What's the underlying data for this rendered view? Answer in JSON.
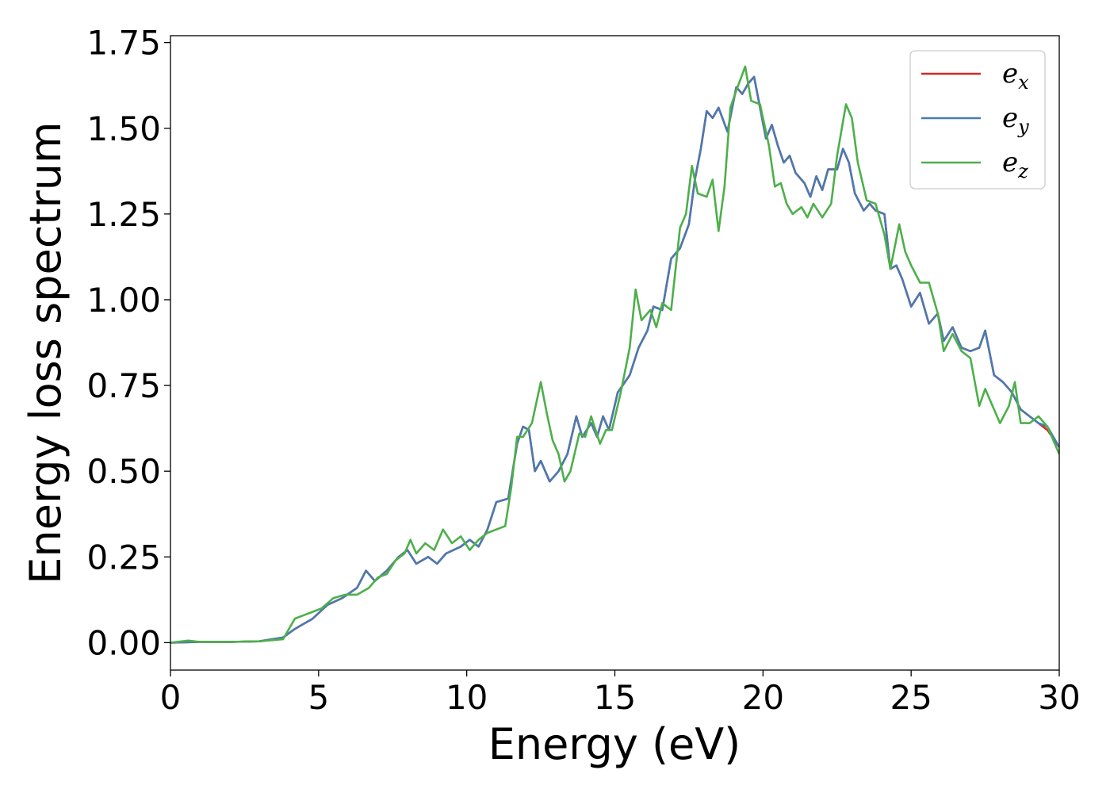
{
  "chart_data": {
    "type": "line",
    "title": "",
    "xlabel": "Energy (eV)",
    "ylabel": "Energy loss spectrum",
    "xlim": [
      0,
      30
    ],
    "ylim": [
      -0.08,
      1.77
    ],
    "xticks": [
      "0",
      "5",
      "10",
      "15",
      "20",
      "25",
      "30"
    ],
    "yticks": [
      "0.00",
      "0.25",
      "0.50",
      "0.75",
      "1.00",
      "1.25",
      "1.50",
      "1.75"
    ],
    "grid": false,
    "legend_position": "top-right",
    "series": [
      {
        "name": "e_x",
        "label_base": "e",
        "label_sub": "x",
        "color": "#d62728",
        "points": [
          [
            0,
            0
          ],
          [
            1,
            0.002
          ],
          [
            2,
            0.002
          ],
          [
            3,
            0.004
          ],
          [
            3.8,
            0.015
          ],
          [
            4.2,
            0.04
          ],
          [
            4.8,
            0.07
          ],
          [
            5.3,
            0.11
          ],
          [
            5.8,
            0.13
          ],
          [
            6.3,
            0.16
          ],
          [
            6.6,
            0.21
          ],
          [
            6.9,
            0.18
          ],
          [
            7.3,
            0.21
          ],
          [
            7.7,
            0.25
          ],
          [
            8.0,
            0.27
          ],
          [
            8.3,
            0.23
          ],
          [
            8.7,
            0.25
          ],
          [
            9.0,
            0.23
          ],
          [
            9.3,
            0.26
          ],
          [
            9.8,
            0.28
          ],
          [
            10.1,
            0.3
          ],
          [
            10.4,
            0.28
          ],
          [
            10.7,
            0.33
          ],
          [
            11.0,
            0.41
          ],
          [
            11.4,
            0.42
          ],
          [
            11.7,
            0.58
          ],
          [
            11.9,
            0.63
          ],
          [
            12.1,
            0.62
          ],
          [
            12.3,
            0.5
          ],
          [
            12.5,
            0.53
          ],
          [
            12.8,
            0.47
          ],
          [
            13.1,
            0.5
          ],
          [
            13.4,
            0.55
          ],
          [
            13.7,
            0.66
          ],
          [
            13.9,
            0.6
          ],
          [
            14.2,
            0.64
          ],
          [
            14.4,
            0.6
          ],
          [
            14.6,
            0.66
          ],
          [
            14.8,
            0.62
          ],
          [
            15.1,
            0.73
          ],
          [
            15.5,
            0.78
          ],
          [
            15.8,
            0.86
          ],
          [
            16.1,
            0.91
          ],
          [
            16.3,
            0.98
          ],
          [
            16.6,
            0.97
          ],
          [
            16.9,
            1.12
          ],
          [
            17.2,
            1.15
          ],
          [
            17.5,
            1.22
          ],
          [
            17.7,
            1.35
          ],
          [
            17.9,
            1.44
          ],
          [
            18.1,
            1.55
          ],
          [
            18.3,
            1.53
          ],
          [
            18.5,
            1.56
          ],
          [
            18.8,
            1.49
          ],
          [
            19.1,
            1.62
          ],
          [
            19.3,
            1.6
          ],
          [
            19.5,
            1.63
          ],
          [
            19.7,
            1.65
          ],
          [
            19.9,
            1.56
          ],
          [
            20.1,
            1.47
          ],
          [
            20.3,
            1.51
          ],
          [
            20.5,
            1.45
          ],
          [
            20.7,
            1.4
          ],
          [
            20.9,
            1.42
          ],
          [
            21.1,
            1.37
          ],
          [
            21.4,
            1.34
          ],
          [
            21.6,
            1.3
          ],
          [
            21.8,
            1.36
          ],
          [
            22.0,
            1.32
          ],
          [
            22.2,
            1.38
          ],
          [
            22.5,
            1.38
          ],
          [
            22.7,
            1.44
          ],
          [
            22.9,
            1.4
          ],
          [
            23.1,
            1.31
          ],
          [
            23.4,
            1.26
          ],
          [
            23.6,
            1.28
          ],
          [
            23.8,
            1.26
          ],
          [
            24.1,
            1.25
          ],
          [
            24.3,
            1.09
          ],
          [
            24.5,
            1.1
          ],
          [
            24.7,
            1.06
          ],
          [
            25.0,
            0.98
          ],
          [
            25.3,
            1.02
          ],
          [
            25.6,
            0.93
          ],
          [
            25.9,
            0.96
          ],
          [
            26.1,
            0.88
          ],
          [
            26.4,
            0.92
          ],
          [
            26.7,
            0.86
          ],
          [
            27.0,
            0.85
          ],
          [
            27.3,
            0.86
          ],
          [
            27.5,
            0.91
          ],
          [
            27.8,
            0.78
          ],
          [
            28.1,
            0.76
          ],
          [
            28.4,
            0.73
          ],
          [
            28.7,
            0.68
          ],
          [
            29.0,
            0.66
          ],
          [
            29.3,
            0.64
          ],
          [
            29.6,
            0.62
          ],
          [
            30,
            0.57
          ]
        ]
      },
      {
        "name": "e_y",
        "label_base": "e",
        "label_sub": "y",
        "color": "#4a7ab0",
        "points": [
          [
            0,
            0
          ],
          [
            1,
            0.002
          ],
          [
            2,
            0.002
          ],
          [
            3,
            0.004
          ],
          [
            3.8,
            0.015
          ],
          [
            4.2,
            0.04
          ],
          [
            4.8,
            0.07
          ],
          [
            5.3,
            0.11
          ],
          [
            5.8,
            0.13
          ],
          [
            6.3,
            0.16
          ],
          [
            6.6,
            0.21
          ],
          [
            6.9,
            0.18
          ],
          [
            7.3,
            0.21
          ],
          [
            7.7,
            0.25
          ],
          [
            8.0,
            0.27
          ],
          [
            8.3,
            0.23
          ],
          [
            8.7,
            0.25
          ],
          [
            9.0,
            0.23
          ],
          [
            9.3,
            0.26
          ],
          [
            9.8,
            0.28
          ],
          [
            10.1,
            0.3
          ],
          [
            10.4,
            0.28
          ],
          [
            10.7,
            0.33
          ],
          [
            11.0,
            0.41
          ],
          [
            11.4,
            0.42
          ],
          [
            11.7,
            0.58
          ],
          [
            11.9,
            0.63
          ],
          [
            12.1,
            0.62
          ],
          [
            12.3,
            0.5
          ],
          [
            12.5,
            0.53
          ],
          [
            12.8,
            0.47
          ],
          [
            13.1,
            0.5
          ],
          [
            13.4,
            0.55
          ],
          [
            13.7,
            0.66
          ],
          [
            13.9,
            0.6
          ],
          [
            14.2,
            0.64
          ],
          [
            14.4,
            0.6
          ],
          [
            14.6,
            0.66
          ],
          [
            14.8,
            0.62
          ],
          [
            15.1,
            0.73
          ],
          [
            15.5,
            0.78
          ],
          [
            15.8,
            0.86
          ],
          [
            16.1,
            0.91
          ],
          [
            16.3,
            0.98
          ],
          [
            16.6,
            0.97
          ],
          [
            16.9,
            1.12
          ],
          [
            17.2,
            1.15
          ],
          [
            17.5,
            1.22
          ],
          [
            17.7,
            1.35
          ],
          [
            17.9,
            1.44
          ],
          [
            18.1,
            1.55
          ],
          [
            18.3,
            1.53
          ],
          [
            18.5,
            1.56
          ],
          [
            18.8,
            1.49
          ],
          [
            19.1,
            1.62
          ],
          [
            19.3,
            1.6
          ],
          [
            19.5,
            1.63
          ],
          [
            19.7,
            1.65
          ],
          [
            19.9,
            1.56
          ],
          [
            20.1,
            1.47
          ],
          [
            20.3,
            1.51
          ],
          [
            20.5,
            1.45
          ],
          [
            20.7,
            1.4
          ],
          [
            20.9,
            1.42
          ],
          [
            21.1,
            1.37
          ],
          [
            21.4,
            1.34
          ],
          [
            21.6,
            1.3
          ],
          [
            21.8,
            1.36
          ],
          [
            22.0,
            1.32
          ],
          [
            22.2,
            1.38
          ],
          [
            22.5,
            1.38
          ],
          [
            22.7,
            1.44
          ],
          [
            22.9,
            1.4
          ],
          [
            23.1,
            1.31
          ],
          [
            23.4,
            1.26
          ],
          [
            23.6,
            1.28
          ],
          [
            23.8,
            1.26
          ],
          [
            24.1,
            1.25
          ],
          [
            24.3,
            1.09
          ],
          [
            24.5,
            1.1
          ],
          [
            24.7,
            1.06
          ],
          [
            25.0,
            0.98
          ],
          [
            25.3,
            1.02
          ],
          [
            25.6,
            0.93
          ],
          [
            25.9,
            0.96
          ],
          [
            26.1,
            0.88
          ],
          [
            26.4,
            0.92
          ],
          [
            26.7,
            0.86
          ],
          [
            27.0,
            0.85
          ],
          [
            27.3,
            0.86
          ],
          [
            27.5,
            0.91
          ],
          [
            27.8,
            0.78
          ],
          [
            28.1,
            0.76
          ],
          [
            28.4,
            0.73
          ],
          [
            28.7,
            0.68
          ],
          [
            29.0,
            0.66
          ],
          [
            29.3,
            0.64
          ],
          [
            29.6,
            0.63
          ],
          [
            30,
            0.57
          ]
        ]
      },
      {
        "name": "e_z",
        "label_base": "e",
        "label_sub": "z",
        "color": "#4daf4a",
        "points": [
          [
            0,
            0
          ],
          [
            0.6,
            0.006
          ],
          [
            1,
            0.002
          ],
          [
            2,
            0.002
          ],
          [
            3,
            0.004
          ],
          [
            3.8,
            0.01
          ],
          [
            4.2,
            0.07
          ],
          [
            4.5,
            0.08
          ],
          [
            4.8,
            0.09
          ],
          [
            5.1,
            0.1
          ],
          [
            5.5,
            0.13
          ],
          [
            5.9,
            0.14
          ],
          [
            6.3,
            0.14
          ],
          [
            6.7,
            0.16
          ],
          [
            7.0,
            0.19
          ],
          [
            7.3,
            0.2
          ],
          [
            7.6,
            0.24
          ],
          [
            7.9,
            0.26
          ],
          [
            8.1,
            0.3
          ],
          [
            8.3,
            0.26
          ],
          [
            8.6,
            0.29
          ],
          [
            8.9,
            0.27
          ],
          [
            9.2,
            0.33
          ],
          [
            9.5,
            0.29
          ],
          [
            9.8,
            0.31
          ],
          [
            10.1,
            0.27
          ],
          [
            10.4,
            0.3
          ],
          [
            10.7,
            0.32
          ],
          [
            11.0,
            0.33
          ],
          [
            11.3,
            0.34
          ],
          [
            11.5,
            0.45
          ],
          [
            11.7,
            0.6
          ],
          [
            11.9,
            0.6
          ],
          [
            12.2,
            0.64
          ],
          [
            12.5,
            0.76
          ],
          [
            12.7,
            0.67
          ],
          [
            12.9,
            0.59
          ],
          [
            13.1,
            0.55
          ],
          [
            13.3,
            0.47
          ],
          [
            13.5,
            0.5
          ],
          [
            13.8,
            0.61
          ],
          [
            14.0,
            0.6
          ],
          [
            14.2,
            0.66
          ],
          [
            14.5,
            0.58
          ],
          [
            14.7,
            0.62
          ],
          [
            14.9,
            0.62
          ],
          [
            15.2,
            0.73
          ],
          [
            15.5,
            0.86
          ],
          [
            15.7,
            1.03
          ],
          [
            15.9,
            0.94
          ],
          [
            16.2,
            0.97
          ],
          [
            16.4,
            0.92
          ],
          [
            16.6,
            0.99
          ],
          [
            16.9,
            0.97
          ],
          [
            17.2,
            1.21
          ],
          [
            17.4,
            1.25
          ],
          [
            17.6,
            1.39
          ],
          [
            17.8,
            1.31
          ],
          [
            18.1,
            1.3
          ],
          [
            18.3,
            1.35
          ],
          [
            18.5,
            1.2
          ],
          [
            18.7,
            1.33
          ],
          [
            18.9,
            1.56
          ],
          [
            19.1,
            1.61
          ],
          [
            19.4,
            1.68
          ],
          [
            19.6,
            1.58
          ],
          [
            19.9,
            1.57
          ],
          [
            20.2,
            1.45
          ],
          [
            20.4,
            1.33
          ],
          [
            20.6,
            1.34
          ],
          [
            20.8,
            1.28
          ],
          [
            21.0,
            1.25
          ],
          [
            21.3,
            1.27
          ],
          [
            21.5,
            1.24
          ],
          [
            21.7,
            1.28
          ],
          [
            22.0,
            1.24
          ],
          [
            22.3,
            1.28
          ],
          [
            22.5,
            1.42
          ],
          [
            22.8,
            1.57
          ],
          [
            23.0,
            1.53
          ],
          [
            23.2,
            1.4
          ],
          [
            23.5,
            1.29
          ],
          [
            23.8,
            1.28
          ],
          [
            24.1,
            1.19
          ],
          [
            24.3,
            1.09
          ],
          [
            24.6,
            1.22
          ],
          [
            24.8,
            1.14
          ],
          [
            25.0,
            1.1
          ],
          [
            25.3,
            1.05
          ],
          [
            25.6,
            1.05
          ],
          [
            25.9,
            0.96
          ],
          [
            26.1,
            0.85
          ],
          [
            26.4,
            0.9
          ],
          [
            26.7,
            0.85
          ],
          [
            27.0,
            0.83
          ],
          [
            27.3,
            0.69
          ],
          [
            27.5,
            0.74
          ],
          [
            27.8,
            0.68
          ],
          [
            28.0,
            0.64
          ],
          [
            28.3,
            0.69
          ],
          [
            28.5,
            0.76
          ],
          [
            28.7,
            0.64
          ],
          [
            29.0,
            0.64
          ],
          [
            29.3,
            0.66
          ],
          [
            29.6,
            0.63
          ],
          [
            30,
            0.55
          ]
        ]
      }
    ]
  }
}
